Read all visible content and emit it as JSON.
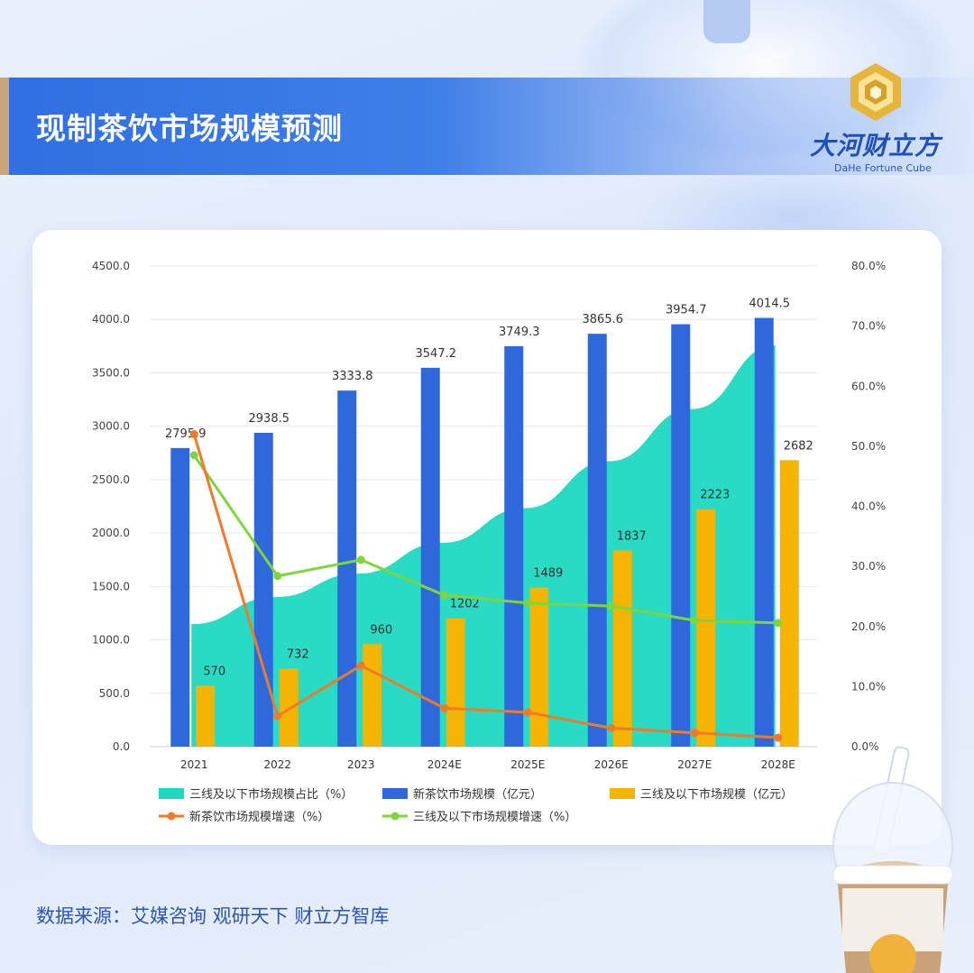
{
  "title": "现制茶饮市场规模预测",
  "brand": {
    "name": "大河财立方",
    "sub": "DaHe Fortune Cube"
  },
  "source": "数据来源：艾媒咨询 观研天下 财立方智库",
  "colors": {
    "share": "#1ed8c2",
    "newtea": "#2e68dc",
    "tier3": "#f5b400",
    "newtea_growth": "#f07a2a",
    "tier3_growth": "#7dd63b"
  },
  "chart_data": {
    "type": "bar",
    "categories": [
      "2021",
      "2022",
      "2023",
      "2024E",
      "2025E",
      "2026E",
      "2027E",
      "2028E"
    ],
    "y_left": {
      "range": [
        0,
        4500
      ],
      "ticks": [
        "0.0",
        "500.0",
        "1000.0",
        "1500.0",
        "2000.0",
        "2500.0",
        "3000.0",
        "3500.0",
        "4000.0",
        "4500.0"
      ]
    },
    "y_right": {
      "range": [
        0,
        80
      ],
      "ticks": [
        "0.0%",
        "10.0%",
        "20.0%",
        "30.0%",
        "40.0%",
        "50.0%",
        "60.0%",
        "70.0%",
        "80.0%"
      ]
    },
    "series": [
      {
        "name": "三线及以下市场规模占比（%）",
        "type": "area",
        "axis": "right",
        "values": [
          20.4,
          24.9,
          28.8,
          33.9,
          39.7,
          47.5,
          56.2,
          66.8
        ]
      },
      {
        "name": "新茶饮市场规模（亿元）",
        "type": "bar",
        "axis": "left",
        "values": [
          2795.9,
          2938.5,
          3333.8,
          3547.2,
          3749.3,
          3865.6,
          3954.7,
          4014.5
        ],
        "labels": [
          "2795.9",
          "2938.5",
          "3333.8",
          "3547.2",
          "3749.3",
          "3865.6",
          "3954.7",
          "4014.5"
        ]
      },
      {
        "name": "三线及以下市场规模（亿元）",
        "type": "bar",
        "axis": "left",
        "values": [
          570,
          732,
          960,
          1202,
          1489,
          1837,
          2223,
          2682
        ],
        "labels": [
          "570",
          "732",
          "960",
          "1202",
          "1489",
          "1837",
          "2223",
          "2682"
        ]
      },
      {
        "name": "新茶饮市场规模增速（%）",
        "type": "line",
        "axis": "right",
        "values": [
          52.0,
          5.1,
          13.5,
          6.4,
          5.7,
          3.1,
          2.3,
          1.5
        ]
      },
      {
        "name": "三线及以下市场规模增速（%）",
        "type": "line",
        "axis": "right",
        "values": [
          48.5,
          28.4,
          31.1,
          25.2,
          23.9,
          23.4,
          21.0,
          20.6
        ]
      }
    ],
    "legend_position": "bottom",
    "grid": true
  }
}
